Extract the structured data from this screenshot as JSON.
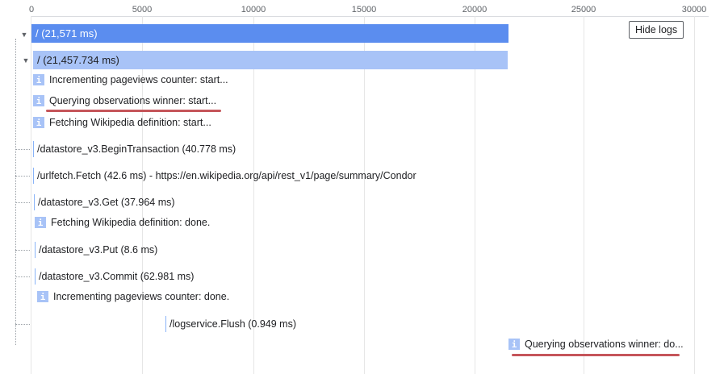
{
  "axis": {
    "ticks": [
      "0",
      "5000",
      "10000",
      "15000",
      "20000",
      "25000",
      "30000"
    ]
  },
  "controls": {
    "hide_logs_label": "Hide logs"
  },
  "rows": {
    "root_span": "/ (21,571 ms)",
    "child_span": "/ (21,457.734 ms)",
    "log_incrementing_start": "Incrementing pageviews counter: start...",
    "log_querying_start": "Querying observations winner: start...",
    "log_fetching_start": "Fetching Wikipedia definition: start...",
    "span_begin_transaction": "/datastore_v3.BeginTransaction (40.778 ms)",
    "span_urlfetch": "/urlfetch.Fetch (42.6 ms) - https://en.wikipedia.org/api/rest_v1/page/summary/Condor",
    "span_get": "/datastore_v3.Get (37.964 ms)",
    "log_fetching_done": "Fetching Wikipedia definition: done.",
    "span_put": "/datastore_v3.Put (8.6 ms)",
    "span_commit": "/datastore_v3.Commit (62.981 ms)",
    "log_incrementing_done": "Incrementing pageviews counter: done.",
    "span_logservice": "/logservice.Flush (0.949 ms)",
    "log_querying_done": "Querying observations winner: do..."
  },
  "icons": {
    "log": "info-icon",
    "toggle": "caret-down-icon"
  },
  "colors": {
    "root_bar": "#5b8def",
    "child_bar": "#a8c3f7",
    "highlight": "#c5555a"
  }
}
